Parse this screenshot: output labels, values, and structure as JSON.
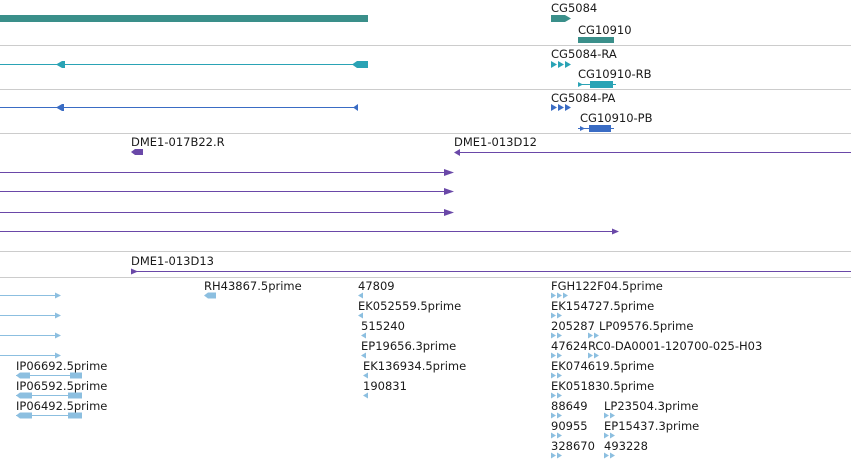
{
  "colors": {
    "gene": "#3a8f8a",
    "transcript": "#2aa3b5",
    "protein": "#3a6cc4",
    "clone": "#6a48a8",
    "est": "#8cbfe0",
    "divider": "#cccccc",
    "background": "#ffffff"
  },
  "tracks": {
    "genes": {
      "labels": [
        "CG5084",
        "CG10910"
      ]
    },
    "transcripts": {
      "labels": [
        "CG5084-RA",
        "CG10910-RB"
      ]
    },
    "proteins": {
      "labels": [
        "CG5084-PA",
        "CG10910-PB"
      ]
    },
    "clones_a": {
      "labels": [
        "DME1-017B22.R",
        "DME1-013D12"
      ]
    },
    "clones_b": {
      "labels": [
        "DME1-013D13"
      ]
    },
    "ests": {
      "labels": [
        "RH43867.5prime",
        "47809",
        "EK052559.5prime",
        "515240",
        "EP19656.3prime",
        "EK136934.5prime",
        "190831",
        "IP06692.5prime",
        "IP06592.5prime",
        "IP06492.5prime",
        "FGH122F04.5prime",
        "EK154727.5prime",
        "205287",
        "LP09576.5prime",
        "47624",
        "RC0-DA0001-120700-025-H03",
        "EK074619.5prime",
        "EK051830.5prime",
        "88649",
        "LP23504.3prime",
        "90955",
        "EP15437.3prime",
        "328670",
        "493228"
      ]
    }
  }
}
